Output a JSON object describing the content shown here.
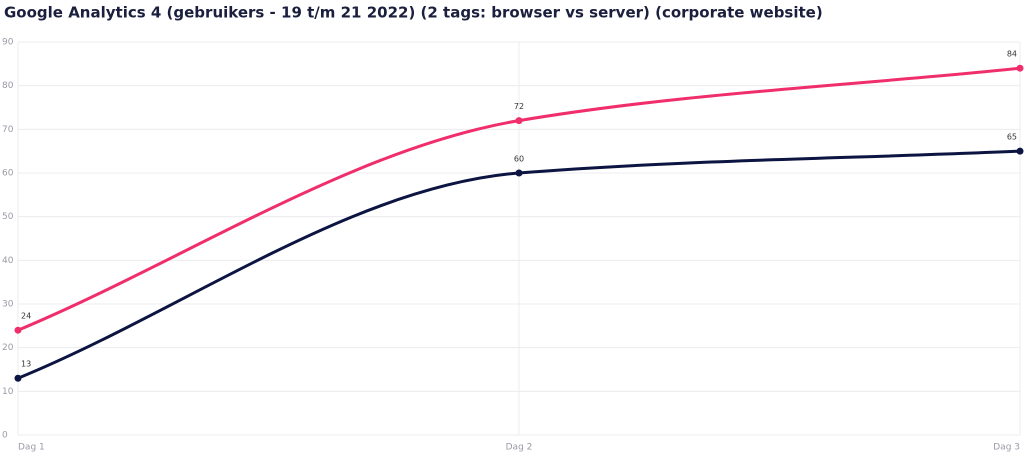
{
  "chart_data": {
    "type": "line",
    "title": "Google Analytics 4 (gebruikers - 19 t/m 21 2022) (2 tags: browser vs server) (corporate website)",
    "categories": [
      "Dag 1",
      "Dag 2",
      "Dag 3"
    ],
    "series": [
      {
        "color": "#f02e6c",
        "values": [
          24,
          72,
          84
        ]
      },
      {
        "color": "#0c1441",
        "values": [
          13,
          60,
          65
        ]
      }
    ],
    "ylim": [
      0,
      90
    ],
    "yticks": [
      0,
      10,
      20,
      30,
      40,
      50,
      60,
      70,
      80,
      90
    ],
    "grid": true
  }
}
